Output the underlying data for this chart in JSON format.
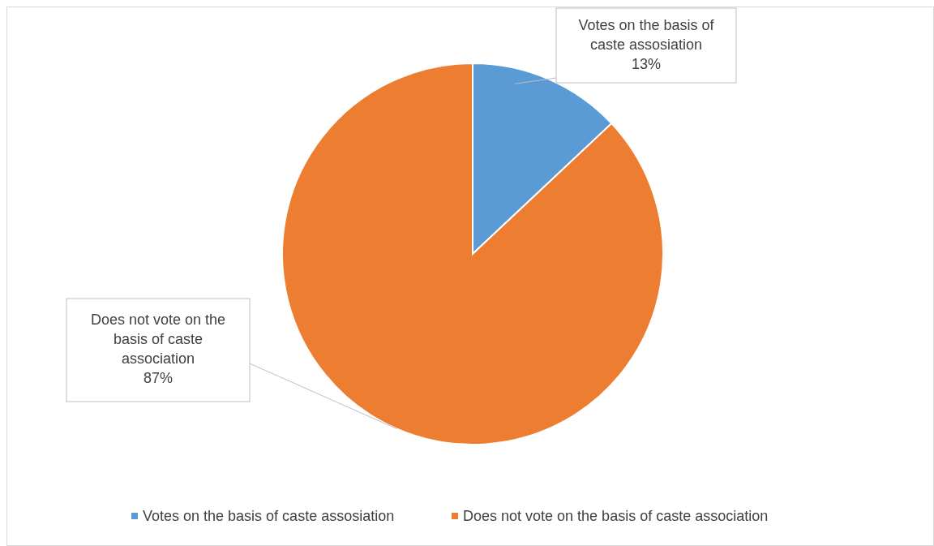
{
  "chart_data": {
    "type": "pie",
    "categories": [
      "Votes on the basis of caste assosiation",
      "Does not vote on the basis of caste association"
    ],
    "values": [
      13,
      87
    ],
    "colors": [
      "#5b9bd5",
      "#ed7d31"
    ],
    "value_labels": [
      "13%",
      "87%"
    ],
    "legend": "bottom"
  }
}
